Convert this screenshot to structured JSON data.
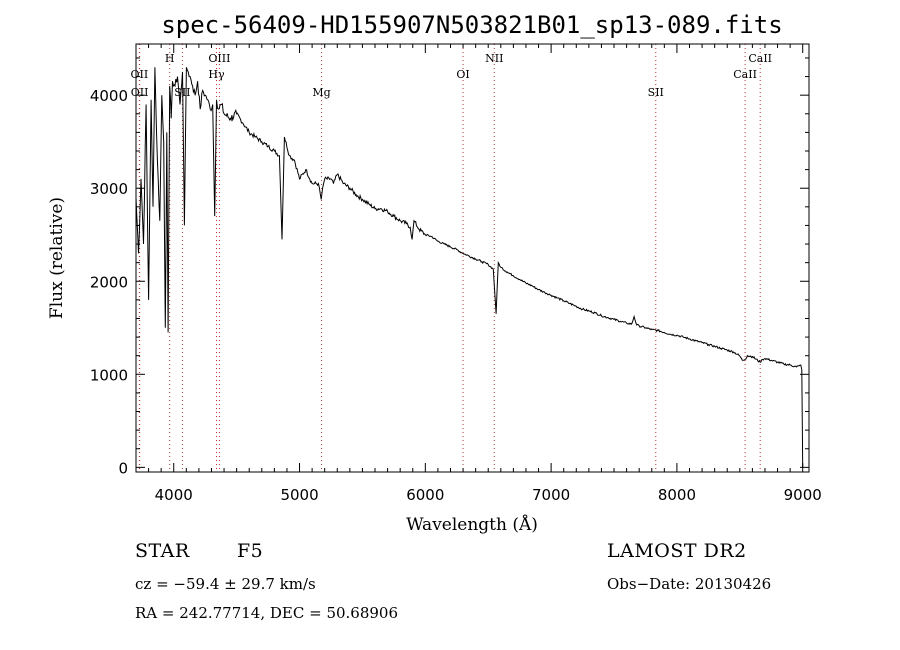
{
  "chart_data": {
    "type": "line",
    "title": "spec-56409-HD155907N503821B01_sp13-089.fits",
    "xlabel": "Wavelength (Å)",
    "ylabel": "Flux (relative)",
    "xlim": [
      3700,
      9050
    ],
    "ylim": [
      -50,
      4550
    ],
    "x_ticks": [
      4000,
      5000,
      6000,
      7000,
      8000,
      9000
    ],
    "y_ticks": [
      0,
      1000,
      2000,
      3000,
      4000
    ],
    "grid": false,
    "series": [
      {
        "x": [
          3700,
          3720,
          3740,
          3760,
          3780,
          3800,
          3820,
          3835,
          3850,
          3870,
          3889,
          3905,
          3920,
          3933,
          3945,
          3955,
          3968,
          3980,
          3990,
          4010,
          4030,
          4050,
          4070,
          4085,
          4101,
          4115,
          4130,
          4150,
          4170,
          4190,
          4210,
          4230,
          4250,
          4270,
          4290,
          4310,
          4326,
          4340,
          4355,
          4380,
          4400,
          4450,
          4500,
          4550,
          4600,
          4650,
          4700,
          4750,
          4800,
          4840,
          4861,
          4880,
          4920,
          4960,
          5000,
          5050,
          5100,
          5150,
          5172,
          5183,
          5200,
          5250,
          5270,
          5300,
          5350,
          5400,
          5450,
          5500,
          5550,
          5600,
          5650,
          5700,
          5750,
          5800,
          5850,
          5880,
          5895,
          5910,
          5950,
          6000,
          6050,
          6100,
          6150,
          6200,
          6250,
          6300,
          6350,
          6400,
          6450,
          6500,
          6540,
          6563,
          6580,
          6600,
          6650,
          6700,
          6750,
          6800,
          6850,
          6900,
          6950,
          7000,
          7050,
          7100,
          7150,
          7200,
          7250,
          7300,
          7350,
          7400,
          7450,
          7500,
          7550,
          7600,
          7640,
          7660,
          7680,
          7700,
          7750,
          7800,
          7850,
          7900,
          7950,
          8000,
          8050,
          8100,
          8150,
          8200,
          8250,
          8300,
          8350,
          8400,
          8450,
          8498,
          8520,
          8542,
          8560,
          8600,
          8662,
          8680,
          8700,
          8750,
          8800,
          8850,
          8900,
          8950,
          8970,
          8985,
          8993,
          9000
        ],
        "y": [
          2900,
          2300,
          3100,
          2400,
          3900,
          1800,
          3950,
          2800,
          4300,
          3300,
          2650,
          4000,
          3500,
          1500,
          3600,
          1450,
          4100,
          3750,
          4150,
          4100,
          4200,
          3900,
          4250,
          2600,
          4300,
          4250,
          4200,
          4100,
          4000,
          4150,
          3850,
          4050,
          4000,
          3950,
          3850,
          3900,
          2700,
          3950,
          3850,
          3900,
          3800,
          3750,
          3800,
          3700,
          3600,
          3550,
          3500,
          3450,
          3400,
          3350,
          2450,
          3550,
          3350,
          3300,
          3100,
          3200,
          3050,
          3050,
          2880,
          3000,
          3100,
          3100,
          3050,
          3150,
          3050,
          3000,
          2930,
          2880,
          2830,
          2780,
          2780,
          2750,
          2700,
          2650,
          2620,
          2580,
          2450,
          2650,
          2560,
          2500,
          2480,
          2430,
          2400,
          2370,
          2340,
          2300,
          2270,
          2240,
          2210,
          2180,
          2130,
          1650,
          2200,
          2150,
          2100,
          2060,
          2020,
          1980,
          1950,
          1910,
          1880,
          1850,
          1820,
          1790,
          1760,
          1730,
          1700,
          1680,
          1660,
          1630,
          1610,
          1590,
          1570,
          1550,
          1540,
          1620,
          1530,
          1520,
          1500,
          1480,
          1470,
          1450,
          1430,
          1420,
          1400,
          1380,
          1360,
          1340,
          1320,
          1300,
          1280,
          1260,
          1240,
          1200,
          1150,
          1160,
          1200,
          1190,
          1130,
          1160,
          1170,
          1150,
          1130,
          1110,
          1100,
          1080,
          1090,
          1100,
          1050,
          0
        ]
      }
    ],
    "lines": [
      {
        "label": "OII",
        "x": 3727,
        "row": 1
      },
      {
        "label": "OII",
        "x": 3729,
        "row": 2
      },
      {
        "label": "H",
        "x": 3968,
        "row": 0
      },
      {
        "label": "SII",
        "x": 4069,
        "row": 2
      },
      {
        "label": "OIII",
        "x": 4363,
        "row": 0
      },
      {
        "label": "Hγ",
        "x": 4340,
        "row": 1
      },
      {
        "label": "Mg",
        "x": 5175,
        "row": 2
      },
      {
        "label": "OI",
        "x": 6300,
        "row": 1
      },
      {
        "label": "NII",
        "x": 6548,
        "row": 0
      },
      {
        "label": "SII",
        "x": 7832,
        "row": 2
      },
      {
        "label": "CaII",
        "x": 8542,
        "row": 1
      },
      {
        "label": "CaII",
        "x": 8662,
        "row": 0
      }
    ]
  },
  "info": {
    "class": "STAR",
    "subclass": "F5",
    "survey": "LAMOST DR2",
    "cz": "cz = −59.4 ± 29.7 km/s",
    "obs_date": "Obs−Date: 20130426",
    "coords": "RA = 242.77714, DEC =  50.68906"
  }
}
